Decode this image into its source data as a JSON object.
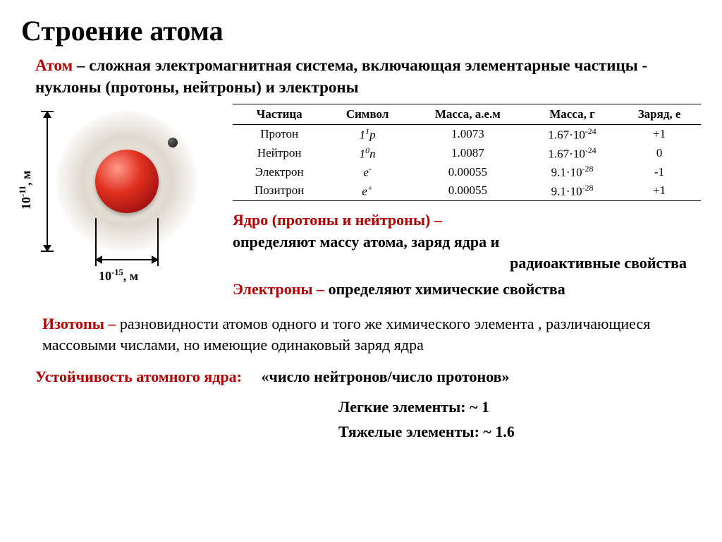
{
  "title": "Строение атома",
  "definition": {
    "term": "Атом",
    "text_part1": " – сложная электромагнитная система, включающая элементарные частицы - нуклоны (протоны, нейтроны) и электроны"
  },
  "table": {
    "columns": [
      "Частица",
      "Символ",
      "Масса, а.е.м",
      "Масса, г",
      "Заряд, е"
    ],
    "rows": [
      {
        "particle": "Протон",
        "symbol_html": "1<sup>1</sup><i>p</i>",
        "mass_aem": "1.0073",
        "mass_g_html": "1.67·10<sup>-24</sup>",
        "charge": "+1"
      },
      {
        "particle": "Нейтрон",
        "symbol_html": "1<sup>0</sup><i>n</i>",
        "mass_aem": "1.0087",
        "mass_g_html": "1.67·10<sup>-24</sup>",
        "charge": "0"
      },
      {
        "particle": "Электрон",
        "symbol_html": "<i>e</i><sup>-</sup>",
        "mass_aem": "0.00055",
        "mass_g_html": "9.1·10<sup>-28</sup>",
        "charge": "-1"
      },
      {
        "particle": "Позитрон",
        "symbol_html": "<i>e</i><sup>+</sup>",
        "mass_aem": "0.00055",
        "mass_g_html": "9.1·10<sup>-28</sup>",
        "charge": "+1"
      }
    ],
    "header_fontsize": 17,
    "cell_fontsize": 17,
    "border_color": "#000000"
  },
  "diagram": {
    "outer_label_html": "10<sup>-11</sup>, м",
    "inner_label_html": "10<sup>-15</sup>, м",
    "cloud_gradient": "radial, #e6e1d7 → transparent",
    "nucleus_gradient_colors": [
      "#ff9a8a",
      "#e03020",
      "#a01010",
      "#700808"
    ],
    "electron_color": "#111111"
  },
  "nucleus_text": {
    "term": "Ядро (протоны и нейтроны) –",
    "rest": "определяют массу атома, заряд ядра и",
    "rest2": "радиоактивные свойства"
  },
  "electrons_text": {
    "term": "Электроны –",
    "rest": " определяют химические свойства"
  },
  "isotopes": {
    "term": "Изотопы –",
    "rest": " разновидности атомов одного и того же химического элемента , различающиеся массовыми числами, но имеющие одинаковый заряд ядра"
  },
  "stability": {
    "label": "Устойчивость атомного ядра:",
    "ratio": "«число нейтронов/число протонов»",
    "light": "Легкие элементы: ~ 1",
    "heavy": "Тяжелые элементы: ~ 1.6"
  },
  "colors": {
    "red": "#b00000",
    "text": "#000000",
    "background": "#ffffff"
  }
}
